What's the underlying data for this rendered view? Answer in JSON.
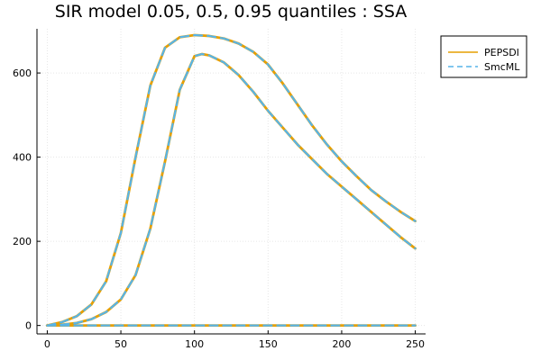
{
  "chart_data": {
    "type": "line",
    "title": "SIR model 0.05, 0.5, 0.95 quantiles : SSA",
    "xlabel": "",
    "ylabel": "",
    "xlim": [
      0,
      250
    ],
    "ylim": [
      0,
      700
    ],
    "x_ticks": [
      0,
      50,
      100,
      150,
      200,
      250
    ],
    "y_ticks": [
      0,
      200,
      400,
      600
    ],
    "x_tick_labels": [
      "0",
      "50",
      "100",
      "150",
      "200",
      "250"
    ],
    "y_tick_labels": [
      "0",
      "200",
      "400",
      "600"
    ],
    "grid": true,
    "legend_position": "top-right",
    "colors": {
      "PEPSDI": "#e69f00",
      "SmcML": "#56b4e9"
    },
    "series": [
      {
        "name": "PEPSDI",
        "style": "solid",
        "quantiles": [
          {
            "label": "0.05",
            "x": [
              0,
              250
            ],
            "y": [
              0,
              0
            ]
          },
          {
            "label": "0.5",
            "x": [
              0,
              10,
              20,
              30,
              40,
              50,
              60,
              70,
              80,
              90,
              100,
              105,
              110,
              120,
              130,
              140,
              150,
              160,
              170,
              180,
              190,
              200,
              210,
              220,
              230,
              240,
              250
            ],
            "y": [
              0,
              2,
              6,
              15,
              32,
              62,
              120,
              230,
              390,
              560,
              640,
              645,
              642,
              625,
              595,
              555,
              510,
              470,
              430,
              395,
              360,
              330,
              300,
              270,
              240,
              210,
              183
            ]
          },
          {
            "label": "0.95",
            "x": [
              0,
              10,
              20,
              30,
              40,
              50,
              60,
              70,
              80,
              90,
              100,
              110,
              120,
              130,
              140,
              150,
              160,
              170,
              180,
              190,
              200,
              210,
              220,
              230,
              240,
              250
            ],
            "y": [
              0,
              8,
              22,
              50,
              105,
              220,
              400,
              570,
              660,
              685,
              690,
              688,
              682,
              670,
              650,
              620,
              575,
              525,
              475,
              430,
              390,
              355,
              322,
              295,
              270,
              248
            ]
          }
        ]
      },
      {
        "name": "SmcML",
        "style": "dashed",
        "quantiles": [
          {
            "label": "0.05",
            "x": [
              0,
              250
            ],
            "y": [
              0,
              0
            ]
          },
          {
            "label": "0.5",
            "x": [
              0,
              10,
              20,
              30,
              40,
              50,
              60,
              70,
              80,
              90,
              100,
              105,
              110,
              120,
              130,
              140,
              150,
              160,
              170,
              180,
              190,
              200,
              210,
              220,
              230,
              240,
              250
            ],
            "y": [
              0,
              2,
              6,
              15,
              32,
              62,
              120,
              230,
              390,
              560,
              640,
              645,
              642,
              625,
              595,
              555,
              510,
              470,
              430,
              395,
              360,
              330,
              300,
              270,
              240,
              210,
              183
            ]
          },
          {
            "label": "0.95",
            "x": [
              0,
              10,
              20,
              30,
              40,
              50,
              60,
              70,
              80,
              90,
              100,
              110,
              120,
              130,
              140,
              150,
              160,
              170,
              180,
              190,
              200,
              210,
              220,
              230,
              240,
              250
            ],
            "y": [
              0,
              8,
              22,
              50,
              105,
              220,
              400,
              570,
              660,
              685,
              690,
              688,
              682,
              670,
              650,
              620,
              575,
              525,
              475,
              430,
              390,
              355,
              322,
              295,
              270,
              248
            ]
          }
        ]
      }
    ]
  }
}
